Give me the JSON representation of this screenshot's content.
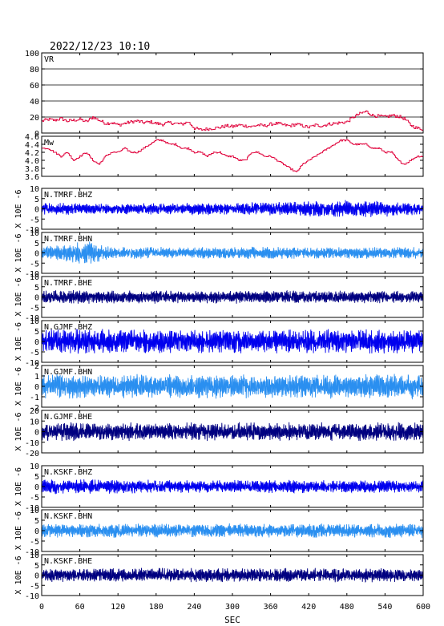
{
  "header": {
    "datetime": "2022/12/23 10:10"
  },
  "chart_data": {
    "type": "line",
    "xlabel": "SEC",
    "xlim": [
      0,
      600
    ],
    "xticks": [
      0,
      60,
      120,
      180,
      240,
      300,
      360,
      420,
      480,
      540,
      600
    ],
    "panels": [
      {
        "name": "VR",
        "label": "VR",
        "ylim": [
          0,
          100
        ],
        "yticks": [
          0,
          20,
          40,
          60,
          80,
          100
        ],
        "ytick_labels": [
          "0",
          "20",
          "40",
          "60",
          "80",
          "100"
        ],
        "grid": true,
        "color": "#e0003a",
        "series": {
          "x": [
            0,
            10,
            20,
            30,
            40,
            50,
            60,
            70,
            80,
            90,
            100,
            110,
            120,
            130,
            140,
            150,
            160,
            170,
            180,
            190,
            200,
            210,
            220,
            230,
            240,
            250,
            260,
            270,
            280,
            290,
            300,
            310,
            320,
            330,
            340,
            350,
            360,
            370,
            380,
            390,
            400,
            410,
            420,
            430,
            440,
            450,
            460,
            470,
            480,
            490,
            500,
            510,
            520,
            530,
            540,
            550,
            560,
            570,
            580,
            590,
            600
          ],
          "y": [
            15,
            17,
            16,
            18,
            15,
            16,
            17,
            14,
            20,
            16,
            12,
            13,
            10,
            12,
            14,
            15,
            13,
            14,
            12,
            11,
            13,
            12,
            11,
            14,
            6,
            4,
            5,
            6,
            7,
            9,
            8,
            10,
            9,
            8,
            10,
            9,
            11,
            12,
            10,
            9,
            11,
            9,
            7,
            10,
            9,
            11,
            12,
            13,
            14,
            20,
            24,
            27,
            22,
            21,
            20,
            22,
            21,
            18,
            10,
            6,
            5
          ]
        }
      },
      {
        "name": "Mw",
        "label": "Mw",
        "ylim": [
          3.6,
          4.6
        ],
        "yticks": [
          3.6,
          3.8,
          4.0,
          4.2,
          4.4,
          4.6
        ],
        "ytick_labels": [
          "3.6",
          "3.8",
          "4.0",
          "4.2",
          "4.4",
          "4.6"
        ],
        "grid": false,
        "color": "#e0003a",
        "series": {
          "x": [
            0,
            10,
            20,
            30,
            40,
            50,
            60,
            70,
            80,
            90,
            100,
            110,
            120,
            130,
            140,
            150,
            160,
            170,
            180,
            190,
            200,
            210,
            220,
            230,
            240,
            250,
            260,
            270,
            280,
            290,
            300,
            310,
            320,
            330,
            340,
            350,
            360,
            370,
            380,
            390,
            400,
            410,
            420,
            430,
            440,
            450,
            460,
            470,
            480,
            490,
            500,
            510,
            520,
            530,
            540,
            550,
            560,
            570,
            580,
            590,
            600
          ],
          "y": [
            4.3,
            4.3,
            4.2,
            4.1,
            4.2,
            4.0,
            4.1,
            4.2,
            4.0,
            3.9,
            4.1,
            4.2,
            4.2,
            4.3,
            4.2,
            4.2,
            4.3,
            4.4,
            4.5,
            4.5,
            4.4,
            4.4,
            4.3,
            4.3,
            4.2,
            4.2,
            4.1,
            4.2,
            4.2,
            4.1,
            4.1,
            4.0,
            4.0,
            4.2,
            4.2,
            4.1,
            4.1,
            4.0,
            3.9,
            3.8,
            3.7,
            3.9,
            4.0,
            4.1,
            4.2,
            4.3,
            4.4,
            4.5,
            4.5,
            4.4,
            4.4,
            4.4,
            4.3,
            4.3,
            4.2,
            4.2,
            4.0,
            3.9,
            4.0,
            4.1,
            4.1
          ]
        }
      },
      {
        "name": "N.TMRF.BHZ",
        "label": "N.TMRF.BHZ",
        "ylim": [
          -10,
          10
        ],
        "yticks": [
          -10,
          -5,
          0,
          5,
          10
        ],
        "ytick_labels": [
          "-10",
          "-5",
          "0",
          "5",
          "10"
        ],
        "ylabel": "X 10E -6",
        "color": "#0000ee",
        "waveform": {
          "amplitude_envelope": [
            [
              0,
              3
            ],
            [
              300,
              3
            ],
            [
              500,
              4.5
            ],
            [
              600,
              3
            ]
          ]
        }
      },
      {
        "name": "N.TMRF.BHN",
        "label": "N.TMRF.BHN",
        "ylim": [
          -10,
          10
        ],
        "yticks": [
          -10,
          -5,
          0,
          5,
          10
        ],
        "ytick_labels": [
          "-10",
          "-5",
          "0",
          "5",
          "10"
        ],
        "ylabel": "X 10E -6",
        "color": "#2a8ff0",
        "waveform": {
          "amplitude_envelope": [
            [
              0,
              3
            ],
            [
              70,
              6
            ],
            [
              110,
              3
            ],
            [
              600,
              3
            ]
          ]
        }
      },
      {
        "name": "N.TMRF.BHE",
        "label": "N.TMRF.BHE",
        "ylim": [
          -10,
          10
        ],
        "yticks": [
          -10,
          -5,
          0,
          5,
          10
        ],
        "ytick_labels": [
          "-10",
          "-5",
          "0",
          "5",
          "10"
        ],
        "ylabel": "X 10E -6",
        "color": "#000080",
        "waveform": {
          "amplitude_envelope": [
            [
              0,
              3.5
            ],
            [
              600,
              3
            ]
          ]
        }
      },
      {
        "name": "N.GJMF.BHZ",
        "label": "N.GJMF.BHZ",
        "ylim": [
          -10,
          10
        ],
        "yticks": [
          -10,
          -5,
          0,
          5,
          10
        ],
        "ytick_labels": [
          "-10",
          "-5",
          "0",
          "5",
          "10"
        ],
        "ylabel": "X 10E -6",
        "color": "#0000ee",
        "waveform": {
          "amplitude_envelope": [
            [
              0,
              6
            ],
            [
              600,
              6
            ]
          ]
        }
      },
      {
        "name": "N.GJMF.BHN",
        "label": "N.GJMF.BHN",
        "ylim": [
          -2,
          2
        ],
        "yticks": [
          -2,
          -1,
          0,
          1,
          2
        ],
        "ytick_labels": [
          "-2",
          "-1",
          "0",
          "1",
          "2"
        ],
        "ylabel": "X 10E -6",
        "color": "#2a8ff0",
        "waveform": {
          "amplitude_envelope": [
            [
              0,
              1.2
            ],
            [
              600,
              1.2
            ]
          ]
        }
      },
      {
        "name": "N.GJMF.BHE",
        "label": "N.GJMF.BHE",
        "ylim": [
          -20,
          20
        ],
        "yticks": [
          -20,
          -10,
          0,
          10,
          20
        ],
        "ytick_labels": [
          "-20",
          "-10",
          "0",
          "10",
          "20"
        ],
        "ylabel": "X 10E -6",
        "color": "#000080",
        "waveform": {
          "amplitude_envelope": [
            [
              0,
              9
            ],
            [
              600,
              9
            ]
          ]
        }
      },
      {
        "name": "N.KSKF.BHZ",
        "label": "N.KSKF.BHZ",
        "ylim": [
          -10,
          10
        ],
        "yticks": [
          -10,
          -5,
          0,
          5,
          10
        ],
        "ytick_labels": [
          "-10",
          "-5",
          "0",
          "5",
          "10"
        ],
        "ylabel": "X 10E -6",
        "color": "#0000ee",
        "waveform": {
          "amplitude_envelope": [
            [
              0,
              3.5
            ],
            [
              600,
              3
            ]
          ]
        }
      },
      {
        "name": "N.KSKF.BHN",
        "label": "N.KSKF.BHN",
        "ylim": [
          -10,
          10
        ],
        "yticks": [
          -10,
          -5,
          0,
          5,
          10
        ],
        "ytick_labels": [
          "-10",
          "-5",
          "0",
          "5",
          "10"
        ],
        "ylabel": "X 10E -6",
        "color": "#2a8ff0",
        "waveform": {
          "amplitude_envelope": [
            [
              0,
              3.5
            ],
            [
              600,
              3.5
            ]
          ]
        }
      },
      {
        "name": "N.KSKF.BHE",
        "label": "N.KSKF.BHE",
        "ylim": [
          -10,
          10
        ],
        "yticks": [
          -10,
          -5,
          0,
          5,
          10
        ],
        "ytick_labels": [
          "-10",
          "-5",
          "0",
          "5",
          "10"
        ],
        "ylabel": "X 10E -6",
        "color": "#000080",
        "waveform": {
          "amplitude_envelope": [
            [
              0,
              3.5
            ],
            [
              600,
              3.5
            ]
          ]
        }
      }
    ]
  }
}
